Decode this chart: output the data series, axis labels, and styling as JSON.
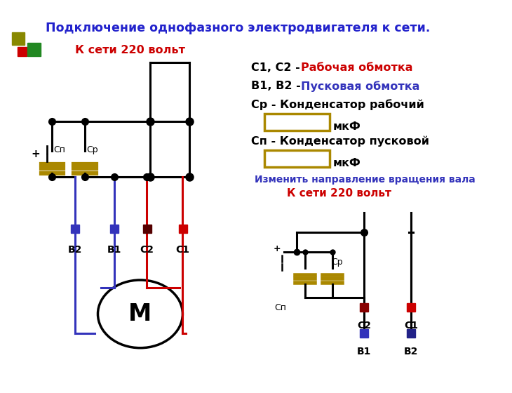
{
  "title": "Подключение однофазного электродвигателя к сети.",
  "title_color": "#2222cc",
  "bg_color": "#ffffff",
  "red_color": "#cc0000",
  "blue_color": "#3333bb",
  "black_color": "#000000",
  "dark_yellow": "#aa8800",
  "legend_red_text": "Рабочая обмотка",
  "legend_blue_text": "Пусковая обмотка",
  "legend_cr_prefix": "Ср - Конденсатор рабочий",
  "legend_cp_prefix": "Сп - Конденсатор пусковой",
  "legend_mf": "мкФ",
  "label_220": "К сети 220 вольт",
  "label_220_2": "К сети 220 вольт",
  "label_change": "Изменить направление вращения вала",
  "motor_label": "М"
}
